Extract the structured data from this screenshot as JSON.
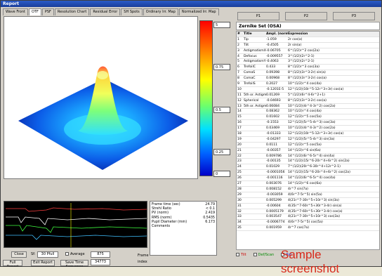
{
  "window": {
    "title": "Report"
  },
  "tabs": [
    "Wave Front",
    "OTF",
    "PSF",
    "Resolution Chart",
    "Residual Error",
    "SH Spots",
    "Ordinary Irr. Map",
    "Normalized Irr. Map"
  ],
  "colorbar": {
    "labels": [
      "5",
      "0.75",
      "0.5",
      "0.25",
      "0"
    ]
  },
  "plot_tabs": [
    "P1",
    "P2",
    "P3"
  ],
  "zernike": {
    "title": "Zernike Set (OSA)",
    "headers": [
      "#",
      "Title",
      "Ampl. (norm)",
      "Expression"
    ],
    "rows": [
      [
        "1",
        "Tip",
        "-1.059",
        "2r cos(a)"
      ],
      [
        "2",
        "Tilt",
        "-0.4505",
        "2r sin(a)"
      ],
      [
        "3",
        "AstigmatismX",
        "-0.06705",
        "6^(1/2)r^2 cos(2a)"
      ],
      [
        "4",
        "Defocus",
        "-0.009557",
        "3^(1/2)(2r^2-1)"
      ],
      [
        "5",
        "AstigmatismY",
        "-0.4063",
        "3^(1/2)(2r^2-1)"
      ],
      [
        "6",
        "TrefoilC",
        "0.433",
        "8^(1/2)r^3 cos(3a)"
      ],
      [
        "7",
        "ComaS",
        "0.09398",
        "8^(1/2)(3r^3-2r) sin(a)"
      ],
      [
        "8",
        "ComaC",
        "0.00968",
        "8^(1/2)(3r^3-2r) cos(a)"
      ],
      [
        "9",
        "TrefoilS",
        "0.2027",
        "10^(1/2)r^4 cos(4a)"
      ],
      [
        "10",
        "",
        "-0.1201E-5",
        "12^(1/2)(10r^5-12r^3+3r) cos(a)"
      ],
      [
        "11",
        "5th or. Astigmat",
        "0.01269",
        "5^(1/2)(6r^4-6r^2+1)"
      ],
      [
        "12",
        "Spherical",
        "-0.04693",
        "8^(1/2)(3r^3-2r) cos(a)"
      ],
      [
        "13",
        "5th or. Astigmat",
        "0.06084",
        "10^(1/2)(4r^4-3r^2) cos(2a)"
      ],
      [
        "14",
        "",
        "0.08362",
        "10^(1/2)r^4 cos(4a)"
      ],
      [
        "15",
        "",
        "0.01602",
        "12^(1/2)r^5 cos(5a)"
      ],
      [
        "16",
        "",
        "-0.1553",
        "12^(1/2)(5r^5-4r^3) cos(3a)"
      ],
      [
        "17",
        "",
        "0.03469",
        "10^(1/2)(4r^4-3r^2) cos(2a)"
      ],
      [
        "18",
        "",
        "-0.01333",
        "12^(1/2)(10r^5-12r^3+3r) cos(a)"
      ],
      [
        "19",
        "",
        "-0.04297",
        "12^(1/2)(5r^5-4r^3) sin(3a)"
      ],
      [
        "20",
        "",
        "0.0111",
        "12^(1/2)r^5 cos(5a)"
      ],
      [
        "21",
        "",
        "-0.00357",
        "14^(1/2)r^6 sin(6a)"
      ],
      [
        "22",
        "",
        "0.009786",
        "14^(1/2)(6r^6-5r^4) sin(4a)"
      ],
      [
        "23",
        "",
        "-0.00135",
        "14^(1/2)(15r^6-20r^4+6r^2) sin(2a)"
      ],
      [
        "24",
        "",
        "0.01029",
        "7^(1/2)(20r^6-30r^4+12r^2-1)"
      ],
      [
        "25",
        "",
        "-0.0001056",
        "14^(1/2)(15r^6-20r^4+6r^2) cos(2a)"
      ],
      [
        "26",
        "",
        "-0.001116",
        "14^(1/2)(6r^6-5r^4) cos(4a)"
      ],
      [
        "27",
        "",
        "0.003076",
        "14^(1/2)r^6 cos(6a)"
      ],
      [
        "28",
        "",
        "0.008152",
        "4r^7 sin(7a)"
      ],
      [
        "29",
        "",
        "-0.003059",
        "4(6r^7-5r^5) sin(5a)"
      ],
      [
        "30",
        "",
        "0.005299",
        "4(21r^7-30r^5+10r^3) sin(3a)"
      ],
      [
        "31",
        "",
        "-0.00604",
        "4(35r^7-60r^5+30r^3-4r) sin(a)"
      ],
      [
        "32",
        "",
        "0.0005179",
        "4(35r^7-60r^5+30r^3-4r) cos(a)"
      ],
      [
        "33",
        "",
        "0.003547",
        "4(21r^7-30r^5+10r^3) cos(3a)"
      ],
      [
        "34",
        "",
        "-0.0006774",
        "4(6r^7-5r^5) cos(5a)"
      ],
      [
        "35",
        "",
        "0.001959",
        "4r^7 cos(7a)"
      ]
    ]
  },
  "checks": [
    "Tilt",
    "Def/Scan",
    "Ast"
  ],
  "stats": [
    [
      "Frame time (sec)",
      "24.79"
    ],
    [
      "Strehl Ratio",
      "< 0.1"
    ],
    [
      "PV (norm)",
      "2.419"
    ],
    [
      "RMS (norm)",
      "0.5435"
    ],
    [
      "Pupil Diameter (mm)",
      "6.173"
    ],
    [
      "Comments",
      ""
    ]
  ],
  "controls": {
    "close": "Close",
    "sf_label": "Sf:",
    "sf_value": "30 Pfull",
    "average": "Average",
    "avg_value": "875",
    "frame_label": "Frame",
    "frame_value": "34773",
    "full_report": "Full Report",
    "exit_report": "Exit Report",
    "save_seq": "Save Time Sequence",
    "index": "index"
  },
  "watermark": "Sample screenshot"
}
